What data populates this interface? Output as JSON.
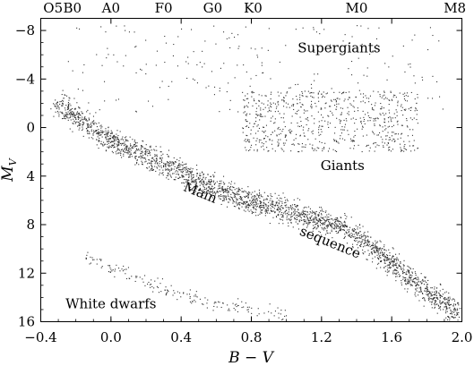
{
  "chart_data": {
    "type": "scatter",
    "title": "",
    "xlabel": "B − V",
    "ylabel_main": "M",
    "ylabel_sub": "V",
    "xlim": [
      -0.4,
      2.0
    ],
    "ylim": [
      16,
      -9
    ],
    "y_inverted": true,
    "grid": false,
    "xticks": [
      -0.4,
      0.0,
      0.4,
      0.8,
      1.2,
      1.6,
      2.0
    ],
    "xtick_labels": [
      "−0.4",
      "0.0",
      "0.4",
      "0.8",
      "1.2",
      "1.6",
      "2.0"
    ],
    "yticks": [
      -8,
      -4,
      0,
      4,
      8,
      12,
      16
    ],
    "ytick_labels": [
      "−8",
      "−4",
      "0",
      "4",
      "8",
      "12",
      "16"
    ],
    "spectral_classes": [
      {
        "label": "O5",
        "bv": -0.33
      },
      {
        "label": "B0",
        "bv": -0.22
      },
      {
        "label": "A0",
        "bv": 0.0
      },
      {
        "label": "F0",
        "bv": 0.3
      },
      {
        "label": "G0",
        "bv": 0.58
      },
      {
        "label": "K0",
        "bv": 0.81
      },
      {
        "label": "M0",
        "bv": 1.4
      },
      {
        "label": "M8",
        "bv": 1.96
      }
    ],
    "annotations": [
      {
        "text": "Supergiants",
        "bv": 1.3,
        "mv": -6.2,
        "rotate": 0
      },
      {
        "text": "Giants",
        "bv": 1.32,
        "mv": 3.5,
        "rotate": 0
      },
      {
        "text": "Main",
        "bv": 0.5,
        "mv": 5.7,
        "rotate": 22
      },
      {
        "text": "sequence",
        "bv": 1.24,
        "mv": 9.8,
        "rotate": 22
      },
      {
        "text": "White dwarfs",
        "bv": 0.0,
        "mv": 14.9,
        "rotate": 0
      }
    ],
    "series": [
      {
        "region": "main sequence",
        "bv": [
          -0.3,
          -0.2,
          -0.1,
          0.0,
          0.1,
          0.2,
          0.3,
          0.4,
          0.5,
          0.6,
          0.7,
          0.8,
          0.9,
          1.0,
          1.1,
          1.2,
          1.3,
          1.4,
          1.5,
          1.6,
          1.7,
          1.8,
          1.9,
          2.0
        ],
        "mv": [
          -2.0,
          -0.8,
          0.3,
          1.1,
          1.8,
          2.4,
          3.0,
          3.7,
          4.4,
          5.0,
          5.6,
          6.1,
          6.5,
          6.9,
          7.3,
          7.7,
          8.2,
          8.9,
          10.0,
          11.2,
          12.4,
          13.5,
          14.5,
          15.5
        ],
        "spread": 0.5
      },
      {
        "region": "giant branch",
        "bv_range": [
          0.75,
          1.75
        ],
        "mv_range": [
          -3.0,
          2.0
        ]
      },
      {
        "region": "supergiants",
        "bv_range": [
          -0.3,
          1.9
        ],
        "mv_range": [
          -8.5,
          -1.0
        ]
      },
      {
        "region": "white dwarfs",
        "bv": [
          -0.15,
          0.0,
          0.2,
          0.4,
          0.6,
          0.8,
          1.0
        ],
        "mv": [
          10.5,
          11.5,
          12.7,
          13.8,
          14.5,
          15.0,
          15.5
        ],
        "spread": 0.6
      }
    ]
  }
}
